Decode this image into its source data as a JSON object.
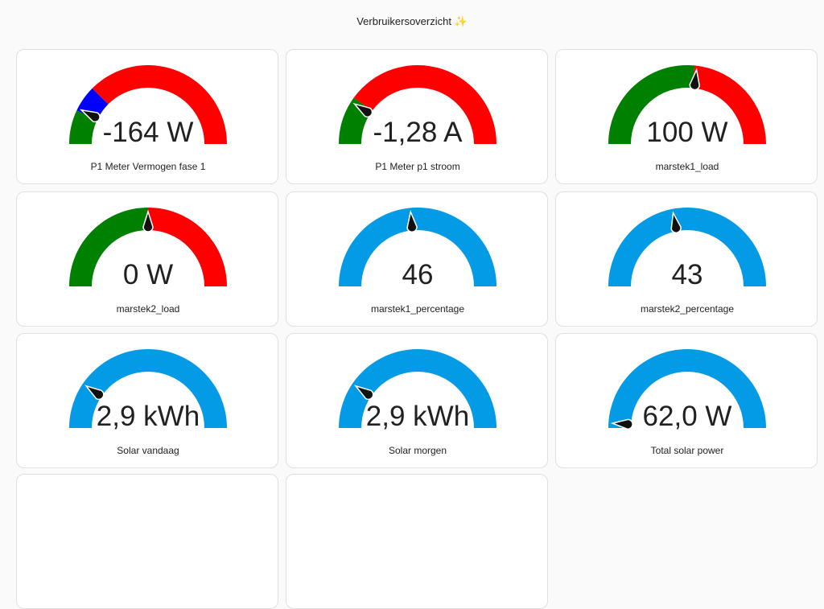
{
  "header": {
    "title": "Verbruikersoverzicht ✨"
  },
  "cards": [
    {
      "display": "-164 W",
      "name": "P1 Meter Vermogen fase 1",
      "gauge": {
        "min": 0,
        "max": 100,
        "needle": 15,
        "segments": [
          {
            "from": 0,
            "to": 14,
            "color": "#008000"
          },
          {
            "from": 14,
            "to": 25,
            "color": "#0000ff"
          },
          {
            "from": 25,
            "to": 100,
            "color": "#ff0000"
          }
        ]
      }
    },
    {
      "display": "-1,28 A",
      "name": "P1 Meter p1 stroom",
      "gauge": {
        "min": 0,
        "max": 100,
        "needle": 18,
        "segments": [
          {
            "from": 0,
            "to": 20,
            "color": "#008000"
          },
          {
            "from": 20,
            "to": 100,
            "color": "#ff0000"
          }
        ]
      }
    },
    {
      "display": "100 W",
      "name": "marstek1_load",
      "gauge": {
        "min": 0,
        "max": 100,
        "needle": 54,
        "segments": [
          {
            "from": 0,
            "to": 53,
            "color": "#008000"
          },
          {
            "from": 53,
            "to": 100,
            "color": "#ff0000"
          }
        ]
      }
    },
    {
      "display": "0 W",
      "name": "marstek2_load",
      "gauge": {
        "min": 0,
        "max": 100,
        "needle": 50,
        "segments": [
          {
            "from": 0,
            "to": 50,
            "color": "#008000"
          },
          {
            "from": 50,
            "to": 100,
            "color": "#ff0000"
          }
        ]
      }
    },
    {
      "display": "46",
      "name": "marstek1_percentage",
      "gauge": {
        "min": 0,
        "max": 100,
        "needle": 47,
        "segments": [
          {
            "from": 0,
            "to": 100,
            "color": "#039be5"
          }
        ]
      }
    },
    {
      "display": "43",
      "name": "marstek2_percentage",
      "gauge": {
        "min": 0,
        "max": 100,
        "needle": 44,
        "segments": [
          {
            "from": 0,
            "to": 100,
            "color": "#039be5"
          }
        ]
      }
    },
    {
      "display": "2,9 kWh",
      "name": "Solar vandaag",
      "gauge": {
        "min": 0,
        "max": 100,
        "needle": 19,
        "segments": [
          {
            "from": 0,
            "to": 100,
            "color": "#039be5"
          }
        ]
      }
    },
    {
      "display": "2,9 kWh",
      "name": "Solar morgen",
      "gauge": {
        "min": 0,
        "max": 100,
        "needle": 19,
        "segments": [
          {
            "from": 0,
            "to": 100,
            "color": "#039be5"
          }
        ]
      }
    },
    {
      "display": "62,0 W",
      "name": "Total solar power",
      "gauge": {
        "min": 0,
        "max": 100,
        "needle": 2,
        "segments": [
          {
            "from": 0,
            "to": 100,
            "color": "#039be5"
          }
        ]
      }
    }
  ]
}
